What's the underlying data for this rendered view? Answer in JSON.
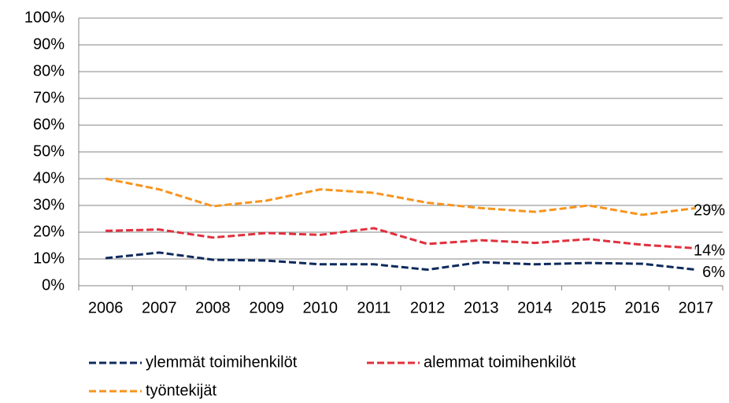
{
  "chart_data": {
    "type": "line",
    "categories": [
      "2006",
      "2007",
      "2008",
      "2009",
      "2010",
      "2011",
      "2012",
      "2013",
      "2014",
      "2015",
      "2016",
      "2017"
    ],
    "series": [
      {
        "name": "ylemmät toimihenkilöt",
        "color": "#0e2a5e",
        "values": [
          10.3,
          12.4,
          9.7,
          9.4,
          8,
          8,
          6,
          8.8,
          8,
          8.5,
          8.2,
          6
        ],
        "value_labels": [
          null,
          null,
          null,
          null,
          null,
          null,
          null,
          null,
          null,
          null,
          null,
          "6%"
        ]
      },
      {
        "name": "alemmat toimihenkilöt",
        "color": "#e0303c",
        "values": [
          20.5,
          21,
          18,
          19.7,
          19,
          21.5,
          15.6,
          17,
          16,
          17.4,
          15.3,
          14
        ],
        "value_labels": [
          null,
          null,
          null,
          null,
          null,
          null,
          null,
          null,
          null,
          null,
          null,
          "14%"
        ]
      },
      {
        "name": "työntekijät",
        "color": "#f7941d",
        "values": [
          40,
          36,
          29.7,
          31.8,
          36,
          34.7,
          31,
          29,
          27.6,
          30,
          26.5,
          29
        ],
        "value_labels": [
          null,
          null,
          null,
          null,
          null,
          null,
          null,
          null,
          null,
          null,
          null,
          "29%"
        ]
      }
    ],
    "ylim": [
      0,
      100
    ],
    "yticks": [
      {
        "value": 0,
        "label": "0%"
      },
      {
        "value": 10,
        "label": "10%"
      },
      {
        "value": 20,
        "label": "20%"
      },
      {
        "value": 30,
        "label": "30%"
      },
      {
        "value": 40,
        "label": "40%"
      },
      {
        "value": 50,
        "label": "50%"
      },
      {
        "value": 60,
        "label": "60%"
      },
      {
        "value": 70,
        "label": "70%"
      },
      {
        "value": 80,
        "label": "80%"
      },
      {
        "value": 90,
        "label": "90%"
      },
      {
        "value": 100,
        "label": "100%"
      }
    ],
    "grid": true,
    "legend": "bottom"
  }
}
